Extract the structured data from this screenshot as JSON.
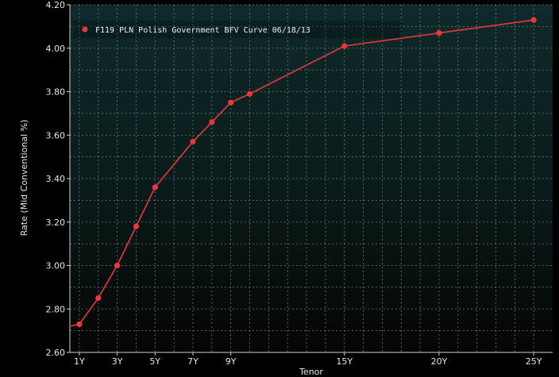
{
  "chart_data": {
    "type": "line",
    "legend_label": "F119 PLN Polish Government BFV Curve 06/18/13",
    "ylabel": "Rate (Mid Conventional %)",
    "xlabel": "Tenor",
    "legend_position": "top-left",
    "grid": true,
    "ylim": [
      2.6,
      4.2
    ],
    "xlim": [
      0.5,
      26.0
    ],
    "y_ticks": [
      "2.60",
      "2.80",
      "3.00",
      "3.20",
      "3.40",
      "3.60",
      "3.80",
      "4.00",
      "4.20"
    ],
    "x_ticks": [
      "1Y",
      "3Y",
      "5Y",
      "7Y",
      "9Y",
      "15Y",
      "20Y",
      "25Y"
    ],
    "x_tick_values": [
      1,
      3,
      5,
      7,
      9,
      15,
      20,
      25
    ],
    "series": [
      {
        "name": "F119 PLN Polish Government BFV Curve 06/18/13",
        "color": "#e8383c",
        "x": [
          0.5,
          1,
          2,
          3,
          4,
          5,
          7,
          8,
          9,
          10,
          15,
          20,
          25
        ],
        "y": [
          2.72,
          2.73,
          2.85,
          3.0,
          3.18,
          3.36,
          3.57,
          3.66,
          3.75,
          3.79,
          4.01,
          4.07,
          4.13
        ]
      }
    ]
  },
  "colors": {
    "background_top": "#0e2a2a",
    "background_bottom": "#050505",
    "line": "#e8383c"
  }
}
